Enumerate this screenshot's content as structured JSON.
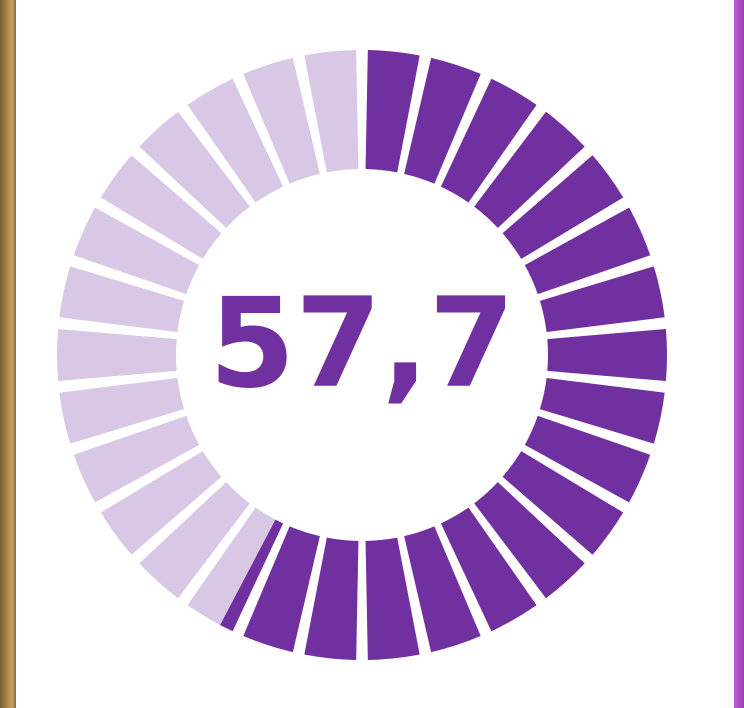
{
  "chart_data": {
    "type": "gauge",
    "values": [
      57.7
    ],
    "value_labels": [
      "57,7"
    ],
    "ylim": [
      0,
      100
    ],
    "segments": 30,
    "color": "#7030a0",
    "track_color": "#d8c8e6"
  }
}
